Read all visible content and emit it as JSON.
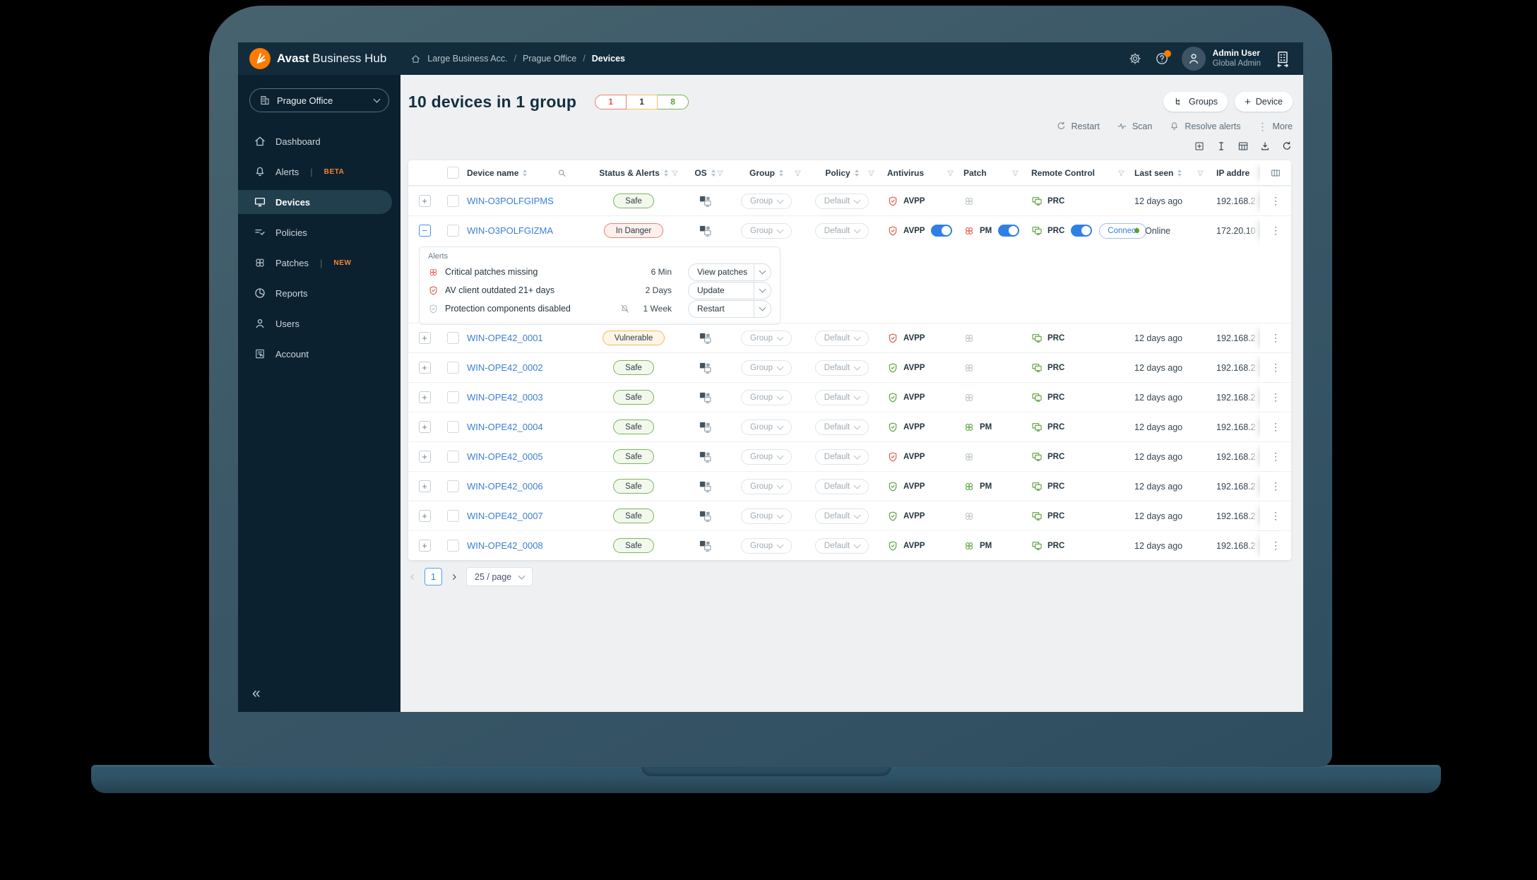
{
  "colors": {
    "accent_orange": "#ff7a00",
    "link_blue": "#3a7fd6",
    "toggle_blue": "#2f80e4",
    "status_green": "#57a035",
    "status_red": "#e05747",
    "status_amber": "#f2b237",
    "sidebar_bg": "#0c2130",
    "topbar_bg": "#132c3c"
  },
  "brand": {
    "bold": "Avast",
    "light": "Business Hub"
  },
  "breadcrumb": [
    "Large Business Acc.",
    "Prague Office",
    "Devices"
  ],
  "user": {
    "name": "Admin User",
    "role": "Global Admin"
  },
  "sidebar": {
    "org_selector": "Prague Office",
    "collapse_glyph": "«",
    "items": [
      {
        "label": "Dashboard",
        "icon": "home",
        "active": false,
        "badge": ""
      },
      {
        "label": "Alerts",
        "icon": "bell",
        "active": false,
        "badge": "BETA"
      },
      {
        "label": "Devices",
        "icon": "monitor",
        "active": true,
        "badge": ""
      },
      {
        "label": "Policies",
        "icon": "policies",
        "active": false,
        "badge": ""
      },
      {
        "label": "Patches",
        "icon": "rings",
        "active": false,
        "badge": "NEW"
      },
      {
        "label": "Reports",
        "icon": "pie",
        "active": false,
        "badge": ""
      },
      {
        "label": "Users",
        "icon": "person",
        "active": false,
        "badge": ""
      },
      {
        "label": "Account",
        "icon": "account",
        "active": false,
        "badge": ""
      }
    ]
  },
  "header": {
    "title": "10 devices in 1 group",
    "count_badges": [
      {
        "value": "1",
        "kind": "red"
      },
      {
        "value": "1",
        "kind": "amber"
      },
      {
        "value": "8",
        "kind": "green"
      }
    ],
    "groups_button": "Groups",
    "device_button": "Device"
  },
  "actions_toolbar": [
    {
      "label": "Restart",
      "icon": "refresh"
    },
    {
      "label": "Scan",
      "icon": "scan"
    },
    {
      "label": "Resolve alerts",
      "icon": "bell"
    },
    {
      "label": "More",
      "icon": "dots"
    }
  ],
  "table_tools": [
    "expand-box",
    "text-cursor",
    "table-grid",
    "download",
    "refresh"
  ],
  "table": {
    "columns": [
      {
        "label": "Device name",
        "sort": true,
        "search": true,
        "align": "left"
      },
      {
        "label": "Status & Alerts",
        "sort": true,
        "filter": true,
        "align": "center"
      },
      {
        "label": "OS",
        "sort": true,
        "filter": true,
        "align": "center"
      },
      {
        "label": "Group",
        "sort": true,
        "filter": true,
        "align": "center"
      },
      {
        "label": "Policy",
        "sort": true,
        "filter": true,
        "align": "center"
      },
      {
        "label": "Antivirus",
        "filter": true,
        "align": "left"
      },
      {
        "label": "Patch",
        "filter": true,
        "align": "left"
      },
      {
        "label": "Remote Control",
        "filter": true,
        "align": "left"
      },
      {
        "label": "Last seen",
        "sort": true,
        "filter": true,
        "align": "left"
      },
      {
        "label": "IP addre",
        "align": "left"
      }
    ],
    "group_value": "Group",
    "policy_value": "Default",
    "rows": [
      {
        "name": "WIN-O3POLFGIPMS",
        "status": "Safe",
        "status_kind": "safe",
        "expanded": false,
        "av_label": "AVPP",
        "av_color": "red",
        "av_toggle": false,
        "patch_label": "",
        "patch_color": "gray",
        "patch_toggle": false,
        "rc_label": "PRC",
        "rc_toggle": false,
        "connect_label": "",
        "last_seen": "12 days ago",
        "online": false,
        "ip": "192.168.2"
      },
      {
        "name": "WIN-O3POLFGIZMA",
        "status": "In Danger",
        "status_kind": "danger",
        "expanded": true,
        "av_label": "AVPP",
        "av_color": "red",
        "av_toggle": true,
        "patch_label": "PM",
        "patch_color": "red",
        "patch_toggle": true,
        "rc_label": "PRC",
        "rc_toggle": true,
        "connect_label": "Connect",
        "last_seen": "Online",
        "online": true,
        "ip": "172.20.10"
      },
      {
        "name": "WIN-OPE42_0001",
        "status": "Vulnerable",
        "status_kind": "warn",
        "expanded": false,
        "av_label": "AVPP",
        "av_color": "red",
        "av_toggle": false,
        "patch_label": "",
        "patch_color": "gray",
        "patch_toggle": false,
        "rc_label": "PRC",
        "rc_toggle": false,
        "connect_label": "",
        "last_seen": "12 days ago",
        "online": false,
        "ip": "192.168.2"
      },
      {
        "name": "WIN-OPE42_0002",
        "status": "Safe",
        "status_kind": "safe",
        "expanded": false,
        "av_label": "AVPP",
        "av_color": "green",
        "av_toggle": false,
        "patch_label": "",
        "patch_color": "gray",
        "patch_toggle": false,
        "rc_label": "PRC",
        "rc_toggle": false,
        "connect_label": "",
        "last_seen": "12 days ago",
        "online": false,
        "ip": "192.168.2"
      },
      {
        "name": "WIN-OPE42_0003",
        "status": "Safe",
        "status_kind": "safe",
        "expanded": false,
        "av_label": "AVPP",
        "av_color": "green",
        "av_toggle": false,
        "patch_label": "",
        "patch_color": "gray",
        "patch_toggle": false,
        "rc_label": "PRC",
        "rc_toggle": false,
        "connect_label": "",
        "last_seen": "12 days ago",
        "online": false,
        "ip": "192.168.2"
      },
      {
        "name": "WIN-OPE42_0004",
        "status": "Safe",
        "status_kind": "safe",
        "expanded": false,
        "av_label": "AVPP",
        "av_color": "green",
        "av_toggle": false,
        "patch_label": "PM",
        "patch_color": "green",
        "patch_toggle": false,
        "rc_label": "PRC",
        "rc_toggle": false,
        "connect_label": "",
        "last_seen": "12 days ago",
        "online": false,
        "ip": "192.168.2"
      },
      {
        "name": "WIN-OPE42_0005",
        "status": "Safe",
        "status_kind": "safe",
        "expanded": false,
        "av_label": "AVPP",
        "av_color": "red",
        "av_toggle": false,
        "patch_label": "",
        "patch_color": "gray",
        "patch_toggle": false,
        "rc_label": "PRC",
        "rc_toggle": false,
        "connect_label": "",
        "last_seen": "12 days ago",
        "online": false,
        "ip": "192.168.2"
      },
      {
        "name": "WIN-OPE42_0006",
        "status": "Safe",
        "status_kind": "safe",
        "expanded": false,
        "av_label": "AVPP",
        "av_color": "green",
        "av_toggle": false,
        "patch_label": "PM",
        "patch_color": "green",
        "patch_toggle": false,
        "rc_label": "PRC",
        "rc_toggle": false,
        "connect_label": "",
        "last_seen": "12 days ago",
        "online": false,
        "ip": "192.168.2"
      },
      {
        "name": "WIN-OPE42_0007",
        "status": "Safe",
        "status_kind": "safe",
        "expanded": false,
        "av_label": "AVPP",
        "av_color": "green",
        "av_toggle": false,
        "patch_label": "",
        "patch_color": "gray",
        "patch_toggle": false,
        "rc_label": "PRC",
        "rc_toggle": false,
        "connect_label": "",
        "last_seen": "12 days ago",
        "online": false,
        "ip": "192.168.2"
      },
      {
        "name": "WIN-OPE42_0008",
        "status": "Safe",
        "status_kind": "safe",
        "expanded": false,
        "av_label": "AVPP",
        "av_color": "green",
        "av_toggle": false,
        "patch_label": "PM",
        "patch_color": "green",
        "patch_toggle": false,
        "rc_label": "PRC",
        "rc_toggle": false,
        "connect_label": "",
        "last_seen": "12 days ago",
        "online": false,
        "ip": "192.168.2"
      }
    ]
  },
  "alerts_panel": {
    "title": "Alerts",
    "items": [
      {
        "icon": "rings",
        "icon_color": "red",
        "muted_bell": false,
        "label": "Critical patches missing",
        "time": "6 Min",
        "action": "View patches"
      },
      {
        "icon": "shield",
        "icon_color": "red",
        "muted_bell": false,
        "label": "AV client outdated 21+ days",
        "time": "2 Days",
        "action": "Update"
      },
      {
        "icon": "shield",
        "icon_color": "gray",
        "muted_bell": true,
        "label": "Protection components disabled",
        "time": "1 Week",
        "action": "Restart"
      }
    ]
  },
  "pagination": {
    "page": "1",
    "page_size": "25 / page"
  }
}
